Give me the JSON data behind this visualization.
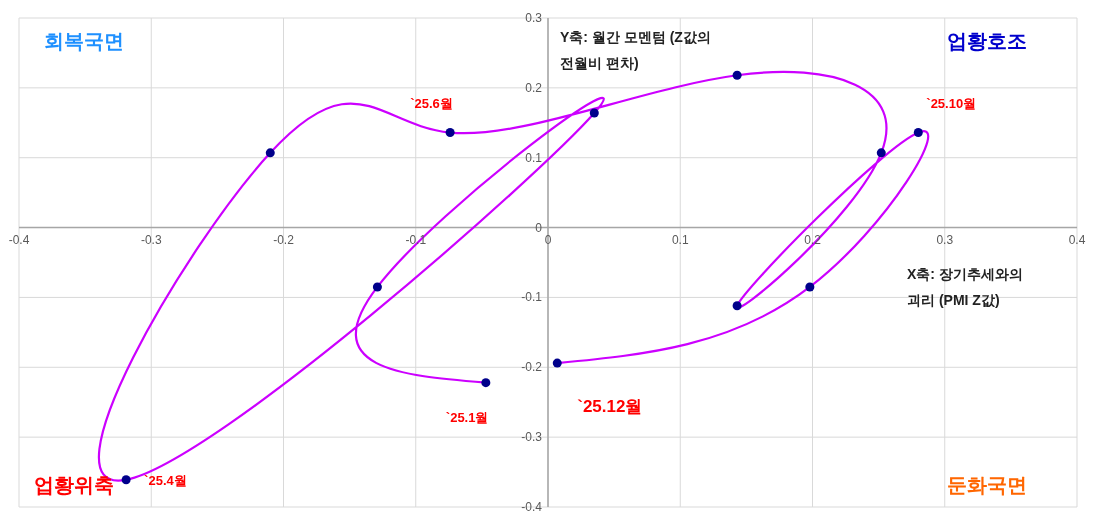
{
  "chart_data": {
    "type": "line",
    "xlabel": "X축: 장기추세와의 괴리 (PMI Z값)",
    "ylabel": "Y축: 월간 모멘텀 (Z값의 전월비 편차)",
    "x": [
      -0.047,
      -0.129,
      0.035,
      -0.319,
      -0.21,
      -0.074,
      0.143,
      0.252,
      0.143,
      0.28,
      0.198,
      0.007
    ],
    "series": [
      {
        "color": "#cc00ff",
        "colors": [
          "#00008b",
          "#00008b",
          "#00008b",
          "#00008b",
          "#00008b",
          "#00008b",
          "#00008b",
          "#00008b",
          "#00008b",
          "#00008b",
          "#00008b",
          "#00008b"
        ],
        "values": [
          -0.222,
          -0.085,
          0.164,
          -0.361,
          0.107,
          0.136,
          0.218,
          0.107,
          -0.112,
          0.136,
          -0.085,
          -0.194
        ]
      }
    ],
    "xlim": [
      -0.4,
      0.4
    ],
    "xticks": [
      -0.4,
      -0.3,
      -0.2,
      -0.1,
      0,
      0.1,
      0.2,
      0.3,
      0.4
    ],
    "ylim": [
      -0.4,
      0.3
    ],
    "yticks": [
      -0.4,
      -0.3,
      -0.2,
      -0.1,
      0,
      0.1,
      0.2,
      0.3
    ],
    "grid": true,
    "marker": "circle",
    "line_style": "solid",
    "legend": false,
    "annotations": [
      "회복국면",
      "업황호조",
      "업황위축",
      "둔화국면",
      {
        "text": "`25.1월",
        "x": -0.047,
        "y": -0.222
      },
      {
        "text": "`25.4월",
        "x": -0.319,
        "y": -0.361
      },
      {
        "text": "`25.6월",
        "x": -0.074,
        "y": 0.136
      },
      {
        "text": "`25.10월",
        "x": 0.28,
        "y": 0.136
      },
      {
        "text": "`25.12월",
        "x": 0.007,
        "y": -0.194
      }
    ]
  }
}
